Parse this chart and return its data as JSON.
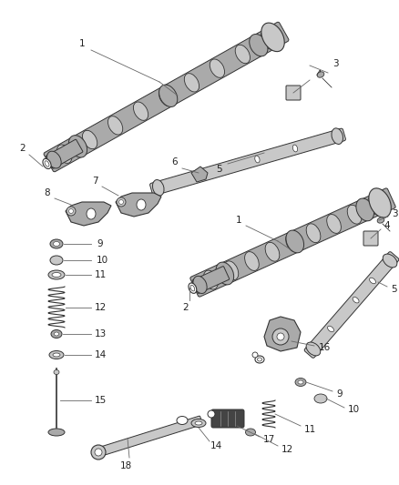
{
  "bg_color": "#ffffff",
  "edge_color": "#333333",
  "fill_light": "#c8c8c8",
  "fill_med": "#aaaaaa",
  "fill_dark": "#888888",
  "fill_vdark": "#444444",
  "line_color": "#666666",
  "label_color": "#222222",
  "fig_width": 4.38,
  "fig_height": 5.33,
  "dpi": 100
}
